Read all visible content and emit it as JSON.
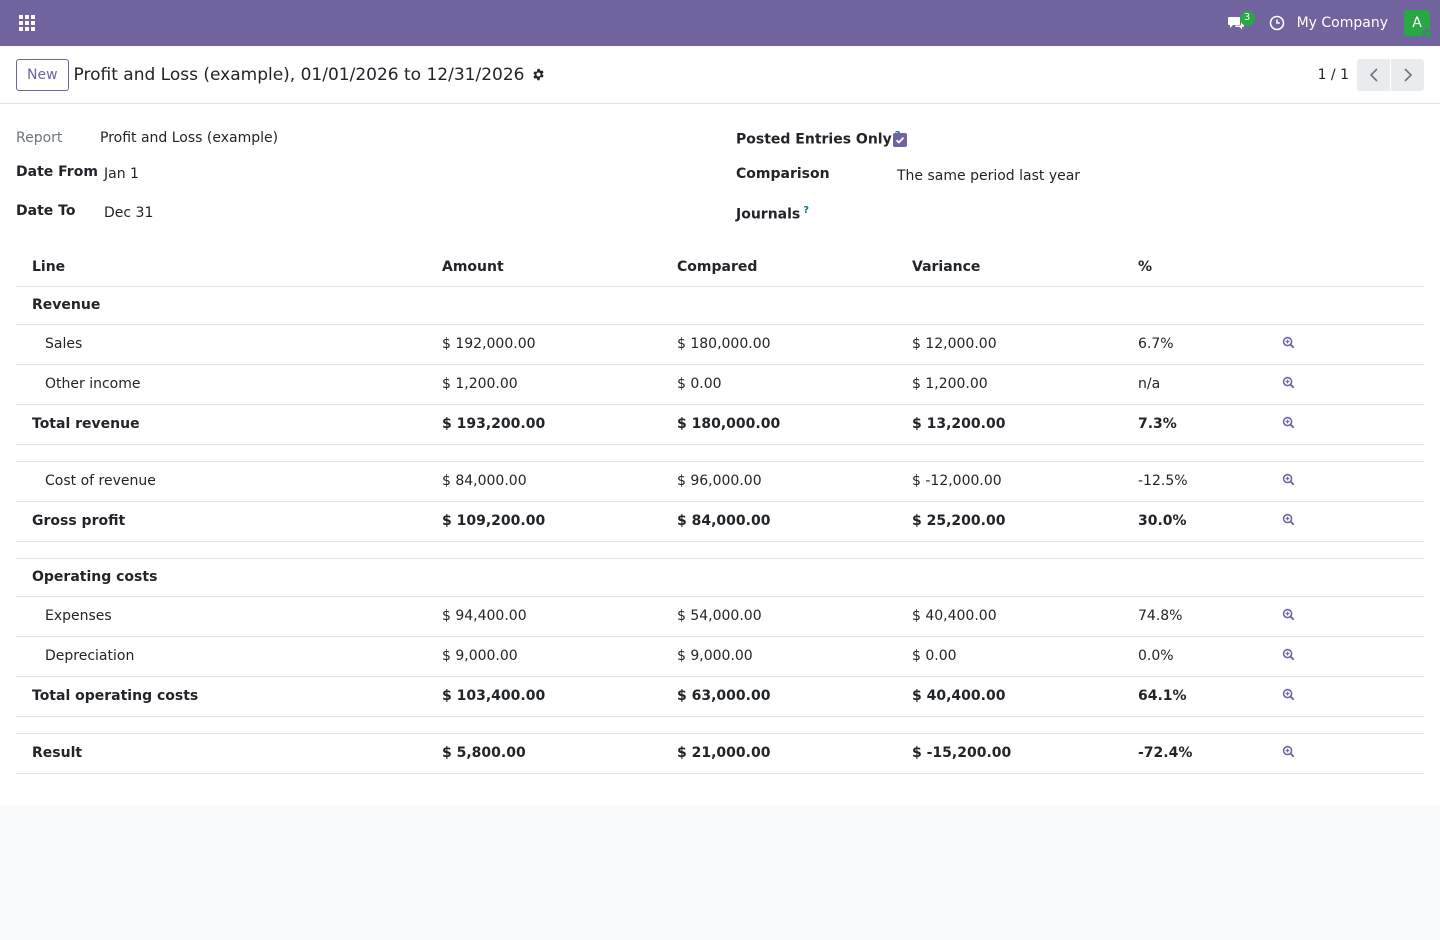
{
  "navbar": {
    "bg_color": "#71639e",
    "chat_count": "3",
    "company": "My Company",
    "avatar_initial": "A"
  },
  "control_panel": {
    "new_label": "New",
    "title": "Profit and Loss (example), 01/01/2026 to 12/31/2026",
    "pager": "1 / 1"
  },
  "form": {
    "report_label": "Report",
    "report_value": "Profit and Loss (example)",
    "date_from_label": "Date From",
    "date_from_value": "Jan 1",
    "date_to_label": "Date To",
    "date_to_value": "Dec 31",
    "posted_label": "Posted Entries Only",
    "posted_checked": true,
    "comparison_label": "Comparison",
    "comparison_value": "The same period last year",
    "journals_label": "Journals",
    "help_mark": "?"
  },
  "table": {
    "headers": [
      "Line",
      "Amount",
      "Compared",
      "Variance",
      "%"
    ],
    "rows": [
      {
        "line": "Revenue",
        "amount": "",
        "compared": "",
        "variance": "",
        "pct": ""
      },
      {
        "line": "Sales",
        "amount": "$ 192,000.00",
        "compared": "$ 180,000.00",
        "variance": "$ 12,000.00",
        "pct": "6.7%"
      },
      {
        "line": "Other income",
        "amount": "$ 1,200.00",
        "compared": "$ 0.00",
        "variance": "$ 1,200.00",
        "pct": "n/a"
      },
      {
        "line": "Total revenue",
        "amount": "$ 193,200.00",
        "compared": "$ 180,000.00",
        "variance": "$ 13,200.00",
        "pct": "7.3%"
      },
      {
        "line": "Cost of revenue",
        "amount": "$ 84,000.00",
        "compared": "$ 96,000.00",
        "variance": "$ -12,000.00",
        "pct": "-12.5%"
      },
      {
        "line": "Gross profit",
        "amount": "$ 109,200.00",
        "compared": "$ 84,000.00",
        "variance": "$ 25,200.00",
        "pct": "30.0%"
      },
      {
        "line": "Operating costs",
        "amount": "",
        "compared": "",
        "variance": "",
        "pct": ""
      },
      {
        "line": "Expenses",
        "amount": "$ 94,400.00",
        "compared": "$ 54,000.00",
        "variance": "$ 40,400.00",
        "pct": "74.8%"
      },
      {
        "line": "Depreciation",
        "amount": "$ 9,000.00",
        "compared": "$ 9,000.00",
        "variance": "$ 0.00",
        "pct": "0.0%"
      },
      {
        "line": "Total operating costs",
        "amount": "$ 103,400.00",
        "compared": "$ 63,000.00",
        "variance": "$ 40,400.00",
        "pct": "64.1%"
      },
      {
        "line": "Result",
        "amount": "$ 5,800.00",
        "compared": "$ 21,000.00",
        "variance": "$ -15,200.00",
        "pct": "-72.4%"
      }
    ]
  },
  "icons": {
    "apps": "apps-grid-icon",
    "chat": "chat-icon",
    "clock": "clock-icon",
    "gear": "gear-icon",
    "zoom": "zoom-in-icon"
  }
}
